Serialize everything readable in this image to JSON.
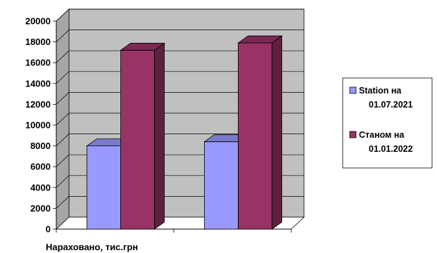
{
  "chart_data": {
    "type": "bar",
    "categories": [
      "",
      ""
    ],
    "series": [
      {
        "name": "Station на 01.07.2021",
        "values": [
          8000,
          8400
        ],
        "color": "#9999FF"
      },
      {
        "name": "Станом на 01.01.2022",
        "values": [
          17200,
          17900
        ],
        "color": "#993366"
      }
    ],
    "xlabel": "Нараховано, тис.грн",
    "ylim": [
      0,
      20000
    ],
    "yticks": [
      0,
      2000,
      4000,
      6000,
      8000,
      10000,
      12000,
      14000,
      16000,
      18000,
      20000
    ],
    "grid": true,
    "legend_position": "right",
    "wall_color": "#C0C0C0"
  }
}
